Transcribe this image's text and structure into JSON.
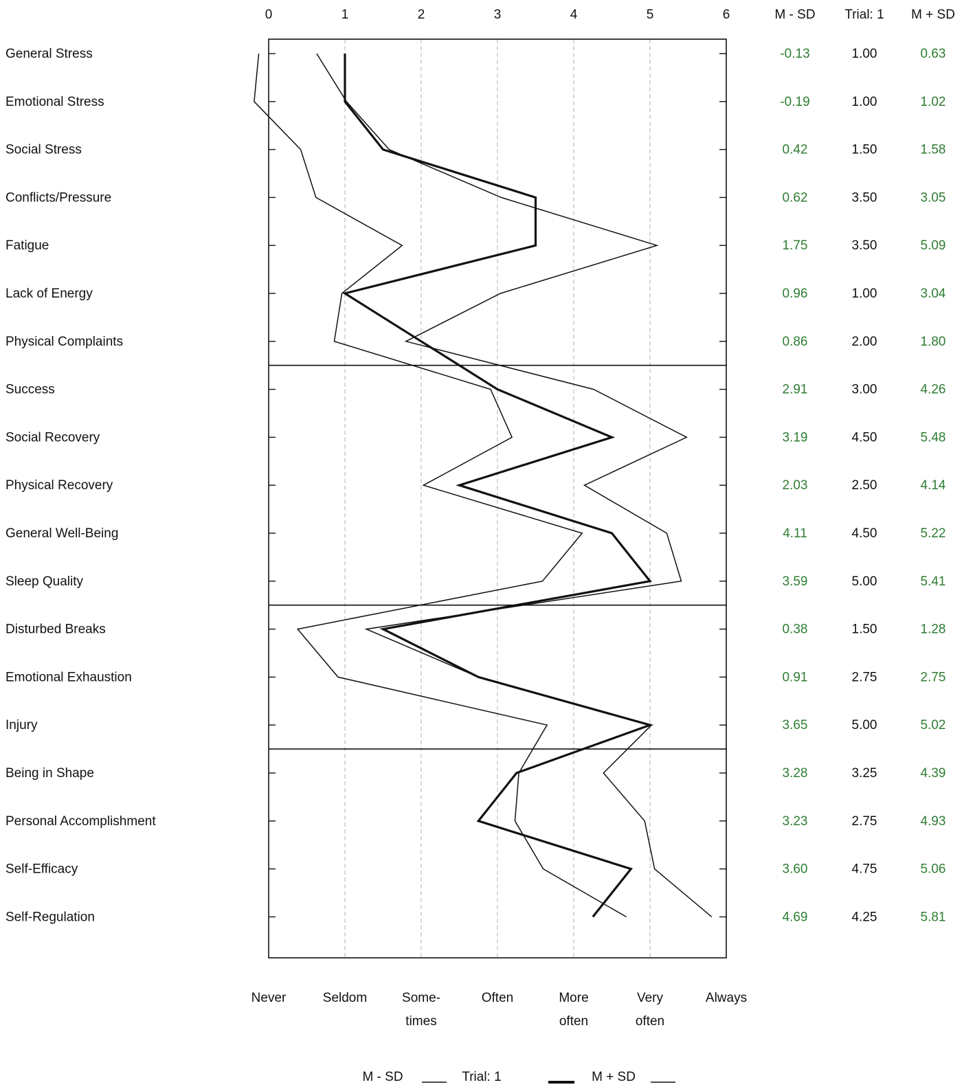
{
  "chart_data": {
    "type": "line",
    "orientation": "vertical-profile",
    "categories": [
      "General Stress",
      "Emotional Stress",
      "Social Stress",
      "Conflicts/Pressure",
      "Fatigue",
      "Lack of Energy",
      "Physical Complaints",
      "Success",
      "Social Recovery",
      "Physical Recovery",
      "General Well-Being",
      "Sleep Quality",
      "Disturbed Breaks",
      "Emotional Exhaustion",
      "Injury",
      "Being in Shape",
      "Personal Accomplishment",
      "Self-Efficacy",
      "Self-Regulation"
    ],
    "series": [
      {
        "name": "M - SD",
        "column_header": "M - SD",
        "values": [
          -0.13,
          -0.19,
          0.42,
          0.62,
          1.75,
          0.96,
          0.86,
          2.91,
          3.19,
          2.03,
          4.11,
          3.59,
          0.38,
          0.91,
          3.65,
          3.28,
          3.23,
          3.6,
          4.69
        ],
        "display": [
          "-0.13",
          "-0.19",
          "0.42",
          "0.62",
          "1.75",
          "0.96",
          "0.86",
          "2.91",
          "3.19",
          "2.03",
          "4.11",
          "3.59",
          "0.38",
          "0.91",
          "3.65",
          "3.28",
          "3.23",
          "3.60",
          "4.69"
        ],
        "line": "thin"
      },
      {
        "name": "Trial:  1",
        "column_header": "Trial: 1",
        "values": [
          1.0,
          1.0,
          1.5,
          3.5,
          3.5,
          1.0,
          2.0,
          3.0,
          4.5,
          2.5,
          4.5,
          5.0,
          1.5,
          2.75,
          5.0,
          3.25,
          2.75,
          4.75,
          4.25
        ],
        "display": [
          "1.00",
          "1.00",
          "1.50",
          "3.50",
          "3.50",
          "1.00",
          "2.00",
          "3.00",
          "4.50",
          "2.50",
          "4.50",
          "5.00",
          "1.50",
          "2.75",
          "5.00",
          "3.25",
          "2.75",
          "4.75",
          "4.25"
        ],
        "line": "thick"
      },
      {
        "name": "M + SD",
        "column_header": "M + SD",
        "values": [
          0.63,
          1.02,
          1.58,
          3.05,
          5.09,
          3.04,
          1.8,
          4.26,
          5.48,
          4.14,
          5.22,
          5.41,
          1.28,
          2.75,
          5.02,
          4.39,
          4.93,
          5.06,
          5.81
        ],
        "display": [
          "0.63",
          "1.02",
          "1.58",
          "3.05",
          "5.09",
          "3.04",
          "1.80",
          "4.26",
          "5.48",
          "4.14",
          "5.22",
          "5.41",
          "1.28",
          "2.75",
          "5.02",
          "4.39",
          "4.93",
          "5.06",
          "5.81"
        ],
        "line": "thin"
      }
    ],
    "x_ticks": [
      "0",
      "1",
      "2",
      "3",
      "4",
      "5",
      "6"
    ],
    "xlim": [
      0,
      6
    ],
    "frequency_labels": [
      [
        "Never"
      ],
      [
        "Seldom"
      ],
      [
        "Some-",
        "times"
      ],
      [
        "Often"
      ],
      [
        "More",
        "often"
      ],
      [
        "Very",
        "often"
      ],
      [
        "Always"
      ]
    ],
    "group_separators_after": [
      "Physical Complaints",
      "Sleep Quality",
      "Injury"
    ],
    "grid": "vertical dashed",
    "legend_position": "bottom",
    "colors": {
      "lines": "#111111",
      "side_values_green": "#2e7d32",
      "trial_values": "#111111",
      "grid": "#b0b0b0"
    }
  }
}
